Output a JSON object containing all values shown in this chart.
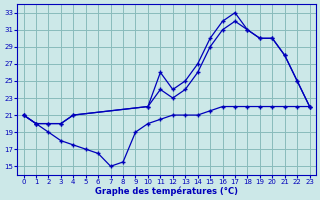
{
  "title": "Graphe des températures (°C)",
  "bg_color": "#cce8e8",
  "grid_color": "#88bbbb",
  "line_color": "#0000bb",
  "xlim": [
    -0.5,
    23.5
  ],
  "ylim": [
    14,
    34
  ],
  "xticks": [
    0,
    1,
    2,
    3,
    4,
    5,
    6,
    7,
    8,
    9,
    10,
    11,
    12,
    13,
    14,
    15,
    16,
    17,
    18,
    19,
    20,
    21,
    22,
    23
  ],
  "yticks": [
    15,
    17,
    19,
    21,
    23,
    25,
    27,
    29,
    31,
    33
  ],
  "line1_x": [
    0,
    1,
    2,
    3,
    4,
    10,
    11,
    12,
    13,
    14,
    15,
    16,
    17,
    18,
    19,
    20,
    21,
    22,
    23
  ],
  "line1_y": [
    21,
    20,
    20,
    20,
    21,
    22,
    26,
    24,
    25,
    27,
    30,
    32,
    33,
    31,
    30,
    30,
    28,
    25,
    22
  ],
  "line2_x": [
    0,
    1,
    2,
    3,
    4,
    10,
    11,
    12,
    13,
    14,
    15,
    16,
    17,
    18,
    19,
    20,
    21,
    22,
    23
  ],
  "line2_y": [
    21,
    20,
    20,
    20,
    21,
    22,
    24,
    23,
    24,
    26,
    29,
    31,
    32,
    31,
    30,
    30,
    28,
    25,
    22
  ],
  "line3_x": [
    0,
    1,
    2,
    3,
    4,
    5,
    6,
    7,
    8,
    9,
    10,
    11,
    12,
    13,
    14,
    15,
    16,
    17,
    18,
    19,
    20,
    21,
    22,
    23
  ],
  "line3_y": [
    21,
    20,
    19,
    18,
    17.5,
    17,
    16.5,
    15,
    15.5,
    19,
    20,
    20.5,
    21,
    21,
    21,
    21.5,
    22,
    22,
    22,
    22,
    22,
    22,
    22,
    22
  ]
}
